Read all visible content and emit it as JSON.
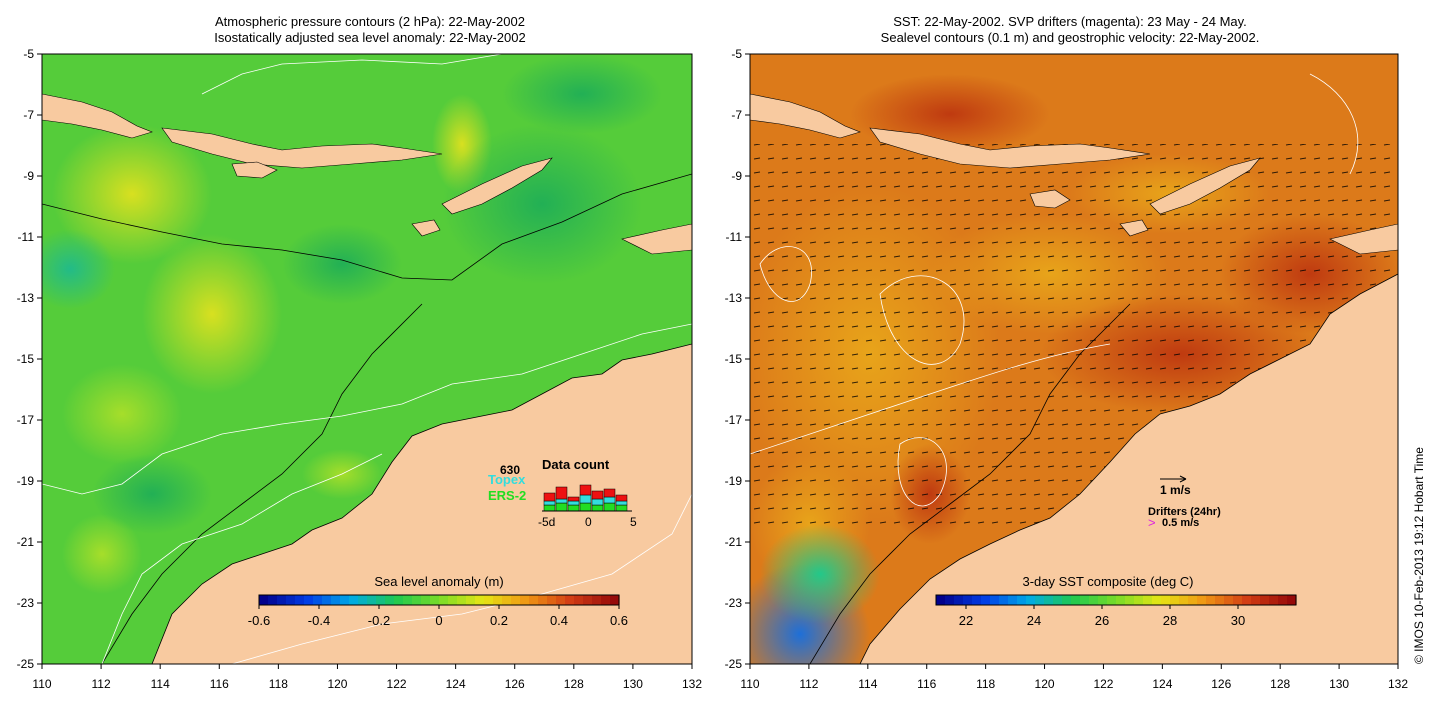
{
  "left_panel": {
    "title_line1": "Atmospheric pressure contours (2 hPa): 22-May-2002",
    "title_line2": "Isostatically adjusted sea level anomaly: 22-May-2002",
    "colorbar_label": "Sea level anomaly (m)",
    "colorbar_ticks": [
      "-0.6",
      "-0.4",
      "-0.2",
      "0",
      "0.2",
      "0.4",
      "0.6"
    ],
    "legend": {
      "count_value": "630",
      "topex_label": "Topex",
      "ers_label": "ERS-2",
      "data_count_title": "Data count",
      "axis_labels": [
        "-5d",
        "0",
        "5"
      ],
      "colors": {
        "topex": "#33dddd",
        "ers": "#22dd22",
        "total": "#ee1111"
      }
    }
  },
  "right_panel": {
    "title_line1": "SST: 22-May-2002. SVP drifters (magenta): 23 May - 24 May.",
    "title_line2": "Sealevel contours (0.1 m) and geostrophic velocity: 22-May-2002.",
    "colorbar_label": "3-day SST composite (deg C)",
    "colorbar_ticks": [
      "22",
      "24",
      "26",
      "28",
      "30"
    ],
    "velocity_scale_label": "1 m/s",
    "drifters_label": "Drifters (24hr)",
    "drifter_speed_label": "0.5 m/s"
  },
  "axes": {
    "lat_ticks": [
      "-5",
      "-7",
      "-9",
      "-11",
      "-13",
      "-15",
      "-17",
      "-19",
      "-21",
      "-23",
      "-25"
    ],
    "lon_ticks": [
      "110",
      "112",
      "114",
      "116",
      "118",
      "120",
      "122",
      "124",
      "126",
      "128",
      "130",
      "132"
    ]
  },
  "copyright": "© IMOS 10-Feb-2013 19:12 Hobart Time",
  "colors": {
    "land": "#f8caa0",
    "ocean_green": "#44cc44",
    "warm_sst": "#d86a1a"
  }
}
